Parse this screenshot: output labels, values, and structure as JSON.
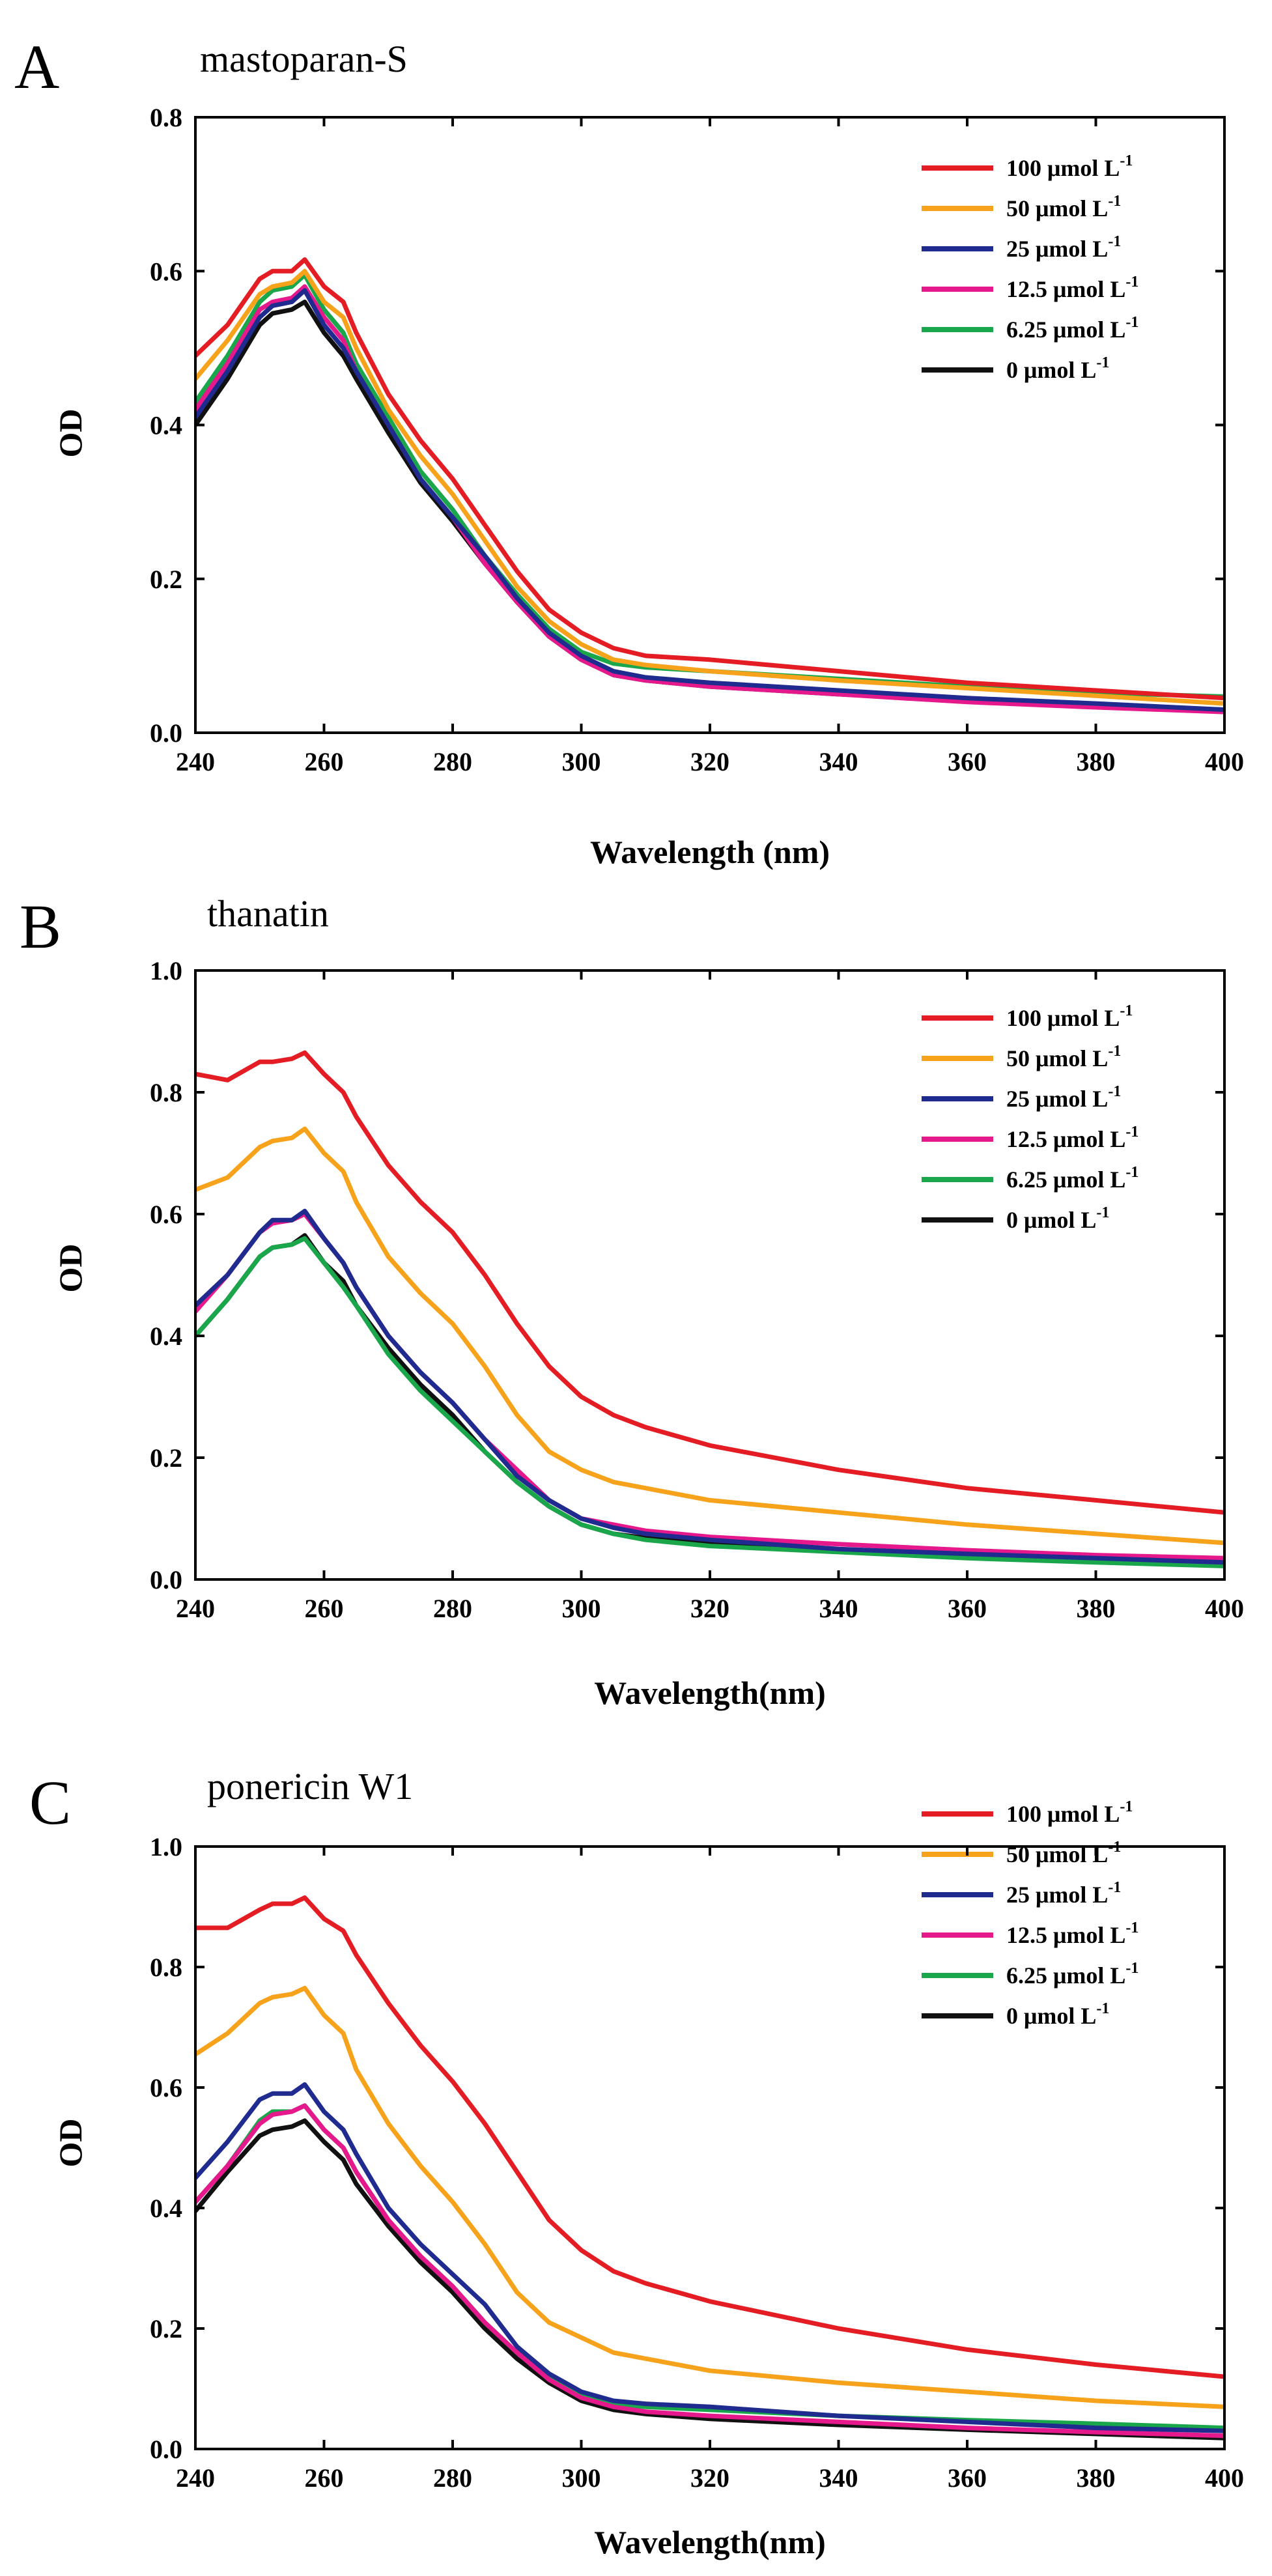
{
  "chart_data": [
    {
      "panel": "A",
      "type": "line",
      "title": "mastoparan-S",
      "xlabel": "Wavelength (nm)",
      "ylabel": "OD",
      "xlim": [
        240,
        400
      ],
      "ylim": [
        0,
        0.8
      ],
      "xticks": [
        "240",
        "260",
        "280",
        "300",
        "320",
        "340",
        "360",
        "380",
        "400"
      ],
      "yticks": [
        "0.0",
        "0.2",
        "0.4",
        "0.6",
        "0.8"
      ],
      "grid": false,
      "legend_position": "top-right",
      "x": [
        240,
        245,
        250,
        252,
        255,
        257,
        260,
        263,
        265,
        270,
        275,
        280,
        285,
        290,
        295,
        300,
        305,
        310,
        320,
        340,
        360,
        380,
        400
      ],
      "series": [
        {
          "name": "100 μmol L",
          "sup": "-1",
          "color": "#e41c23",
          "values": [
            0.49,
            0.53,
            0.59,
            0.6,
            0.6,
            0.615,
            0.58,
            0.56,
            0.52,
            0.44,
            0.38,
            0.33,
            0.27,
            0.21,
            0.16,
            0.13,
            0.11,
            0.1,
            0.095,
            0.08,
            0.065,
            0.055,
            0.045
          ]
        },
        {
          "name": "50 μmol L",
          "sup": "-1",
          "color": "#f7a21b",
          "values": [
            0.46,
            0.51,
            0.57,
            0.58,
            0.585,
            0.6,
            0.56,
            0.54,
            0.5,
            0.42,
            0.36,
            0.31,
            0.25,
            0.19,
            0.145,
            0.115,
            0.095,
            0.088,
            0.08,
            0.068,
            0.058,
            0.048,
            0.038
          ]
        },
        {
          "name": "25 μmol L",
          "sup": "-1",
          "color": "#1f2b8f",
          "values": [
            0.41,
            0.47,
            0.54,
            0.555,
            0.56,
            0.575,
            0.53,
            0.5,
            0.47,
            0.4,
            0.33,
            0.28,
            0.23,
            0.175,
            0.13,
            0.1,
            0.08,
            0.072,
            0.065,
            0.055,
            0.045,
            0.038,
            0.03
          ]
        },
        {
          "name": "12.5 μmol L",
          "sup": "-1",
          "color": "#e6198c",
          "values": [
            0.42,
            0.48,
            0.55,
            0.56,
            0.565,
            0.58,
            0.54,
            0.51,
            0.47,
            0.4,
            0.33,
            0.28,
            0.22,
            0.17,
            0.125,
            0.095,
            0.075,
            0.068,
            0.06,
            0.05,
            0.04,
            0.033,
            0.027
          ]
        },
        {
          "name": "6.25 μmol L",
          "sup": "-1",
          "color": "#1aa64b",
          "values": [
            0.43,
            0.49,
            0.56,
            0.575,
            0.58,
            0.595,
            0.55,
            0.52,
            0.48,
            0.41,
            0.34,
            0.29,
            0.23,
            0.18,
            0.135,
            0.105,
            0.09,
            0.085,
            0.08,
            0.07,
            0.06,
            0.052,
            0.047
          ]
        },
        {
          "name": "0 μmol L",
          "sup": "-1",
          "color": "#111111",
          "values": [
            0.4,
            0.46,
            0.53,
            0.545,
            0.55,
            0.56,
            0.52,
            0.49,
            0.46,
            0.39,
            0.325,
            0.275,
            0.22,
            0.17,
            0.125,
            0.095,
            0.075,
            0.068,
            0.06,
            0.05,
            0.042,
            0.035,
            0.03
          ]
        }
      ]
    },
    {
      "panel": "B",
      "type": "line",
      "title": "thanatin",
      "xlabel": "Wavelength(nm)",
      "ylabel": "OD",
      "xlim": [
        240,
        400
      ],
      "ylim": [
        0,
        1.0
      ],
      "xticks": [
        "240",
        "260",
        "280",
        "300",
        "320",
        "340",
        "360",
        "380",
        "400"
      ],
      "yticks": [
        "0.0",
        "0.2",
        "0.4",
        "0.6",
        "0.8",
        "1.0"
      ],
      "grid": false,
      "legend_position": "top-right",
      "x": [
        240,
        245,
        250,
        252,
        255,
        257,
        260,
        263,
        265,
        270,
        275,
        280,
        285,
        290,
        295,
        300,
        305,
        310,
        320,
        340,
        360,
        380,
        400
      ],
      "series": [
        {
          "name": "100 μmol L",
          "sup": "-1",
          "color": "#e41c23",
          "values": [
            0.83,
            0.82,
            0.85,
            0.85,
            0.855,
            0.865,
            0.83,
            0.8,
            0.76,
            0.68,
            0.62,
            0.57,
            0.5,
            0.42,
            0.35,
            0.3,
            0.27,
            0.25,
            0.22,
            0.18,
            0.15,
            0.13,
            0.11
          ]
        },
        {
          "name": "50 μmol L",
          "sup": "-1",
          "color": "#f7a21b",
          "values": [
            0.64,
            0.66,
            0.71,
            0.72,
            0.725,
            0.74,
            0.7,
            0.67,
            0.62,
            0.53,
            0.47,
            0.42,
            0.35,
            0.27,
            0.21,
            0.18,
            0.16,
            0.15,
            0.13,
            0.11,
            0.09,
            0.075,
            0.06
          ]
        },
        {
          "name": "25 μmol L",
          "sup": "-1",
          "color": "#1f2b8f",
          "values": [
            0.45,
            0.5,
            0.57,
            0.59,
            0.59,
            0.605,
            0.56,
            0.52,
            0.48,
            0.4,
            0.34,
            0.29,
            0.23,
            0.17,
            0.13,
            0.1,
            0.085,
            0.075,
            0.065,
            0.05,
            0.042,
            0.035,
            0.028
          ]
        },
        {
          "name": "12.5 μmol L",
          "sup": "-1",
          "color": "#e6198c",
          "values": [
            0.44,
            0.5,
            0.57,
            0.585,
            0.59,
            0.6,
            0.56,
            0.52,
            0.48,
            0.4,
            0.34,
            0.29,
            0.23,
            0.18,
            0.13,
            0.1,
            0.09,
            0.08,
            0.07,
            0.058,
            0.048,
            0.04,
            0.035
          ]
        },
        {
          "name": "6.25 μmol L",
          "sup": "-1",
          "color": "#1aa64b",
          "values": [
            0.4,
            0.46,
            0.53,
            0.545,
            0.55,
            0.56,
            0.52,
            0.48,
            0.45,
            0.37,
            0.31,
            0.26,
            0.21,
            0.16,
            0.12,
            0.09,
            0.075,
            0.065,
            0.055,
            0.045,
            0.035,
            0.028,
            0.022
          ]
        },
        {
          "name": "0 μmol L",
          "sup": "-1",
          "color": "#111111",
          "values": [
            0.4,
            0.46,
            0.53,
            0.545,
            0.55,
            0.565,
            0.52,
            0.49,
            0.45,
            0.38,
            0.32,
            0.27,
            0.21,
            0.16,
            0.12,
            0.09,
            0.075,
            0.068,
            0.06,
            0.048,
            0.04,
            0.033,
            0.027
          ]
        }
      ]
    },
    {
      "panel": "C",
      "type": "line",
      "title": "ponericin W1",
      "xlabel": "Wavelength(nm)",
      "ylabel": "OD",
      "xlim": [
        240,
        400
      ],
      "ylim": [
        0,
        1.0
      ],
      "xticks": [
        "240",
        "260",
        "280",
        "300",
        "320",
        "340",
        "360",
        "380",
        "400"
      ],
      "yticks": [
        "0.0",
        "0.2",
        "0.4",
        "0.6",
        "0.8",
        "1.0"
      ],
      "grid": false,
      "legend_position": "top-right",
      "x": [
        240,
        245,
        250,
        252,
        255,
        257,
        260,
        263,
        265,
        270,
        275,
        280,
        285,
        290,
        295,
        300,
        305,
        310,
        320,
        340,
        360,
        380,
        400
      ],
      "series": [
        {
          "name": "100 μmol L",
          "sup": "-1",
          "color": "#e41c23",
          "values": [
            0.865,
            0.865,
            0.895,
            0.905,
            0.905,
            0.915,
            0.88,
            0.86,
            0.82,
            0.74,
            0.67,
            0.61,
            0.54,
            0.46,
            0.38,
            0.33,
            0.295,
            0.275,
            0.245,
            0.2,
            0.165,
            0.14,
            0.12
          ]
        },
        {
          "name": "50 μmol L",
          "sup": "-1",
          "color": "#f7a21b",
          "values": [
            0.655,
            0.69,
            0.74,
            0.75,
            0.755,
            0.765,
            0.72,
            0.69,
            0.63,
            0.54,
            0.47,
            0.41,
            0.34,
            0.26,
            0.21,
            0.185,
            0.16,
            0.15,
            0.13,
            0.11,
            0.095,
            0.08,
            0.07
          ]
        },
        {
          "name": "25 μmol L",
          "sup": "-1",
          "color": "#1f2b8f",
          "values": [
            0.45,
            0.51,
            0.58,
            0.59,
            0.59,
            0.605,
            0.56,
            0.53,
            0.49,
            0.4,
            0.34,
            0.29,
            0.24,
            0.17,
            0.125,
            0.095,
            0.08,
            0.075,
            0.07,
            0.055,
            0.045,
            0.035,
            0.03
          ]
        },
        {
          "name": "12.5 μmol L",
          "sup": "-1",
          "color": "#e6198c",
          "values": [
            0.41,
            0.47,
            0.54,
            0.555,
            0.56,
            0.57,
            0.53,
            0.5,
            0.46,
            0.38,
            0.32,
            0.27,
            0.21,
            0.16,
            0.115,
            0.085,
            0.07,
            0.062,
            0.055,
            0.045,
            0.035,
            0.028,
            0.022
          ]
        },
        {
          "name": "6.25 μmol L",
          "sup": "-1",
          "color": "#1aa64b",
          "values": [
            0.41,
            0.47,
            0.545,
            0.56,
            0.56,
            0.57,
            0.53,
            0.5,
            0.46,
            0.38,
            0.32,
            0.27,
            0.21,
            0.16,
            0.12,
            0.09,
            0.075,
            0.07,
            0.065,
            0.055,
            0.048,
            0.042,
            0.035
          ]
        },
        {
          "name": "0 μmol L",
          "sup": "-1",
          "color": "#111111",
          "values": [
            0.395,
            0.46,
            0.52,
            0.53,
            0.535,
            0.545,
            0.51,
            0.48,
            0.44,
            0.37,
            0.31,
            0.26,
            0.2,
            0.15,
            0.11,
            0.08,
            0.065,
            0.058,
            0.05,
            0.04,
            0.032,
            0.025,
            0.018
          ]
        }
      ]
    }
  ]
}
